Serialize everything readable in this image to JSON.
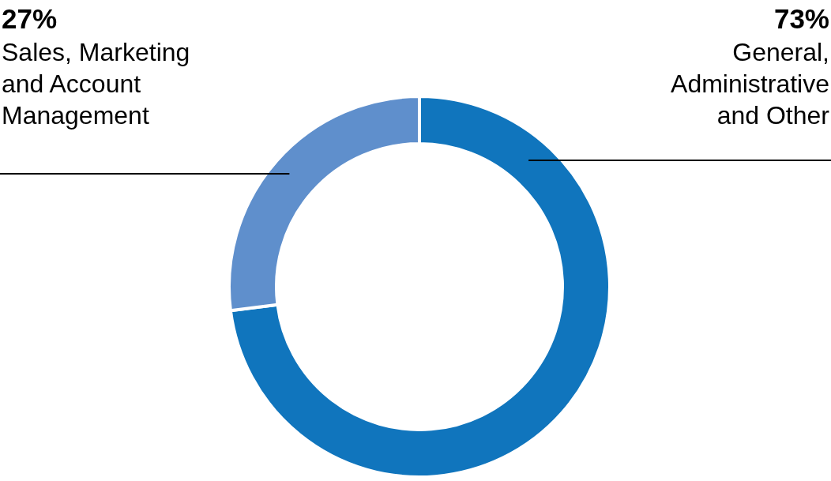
{
  "chart_data": {
    "type": "donut",
    "categories": [
      "General, Administrative and Other",
      "Sales, Marketing and Account Management"
    ],
    "values": [
      73,
      27
    ],
    "colors": [
      "#1075bd",
      "#5f8fcc"
    ],
    "value_labels": [
      "73%",
      "27%"
    ]
  }
}
